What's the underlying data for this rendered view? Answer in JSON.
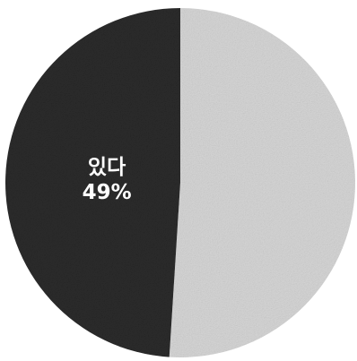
{
  "chart_data": {
    "type": "pie",
    "title": "",
    "start_angle_deg": 0,
    "direction": "clockwise",
    "slices": [
      {
        "label": "",
        "percent_label": "",
        "value": 51,
        "color": "#d6d6d6",
        "text_color": "#ffffff"
      },
      {
        "label": "있다",
        "percent_label": "49%",
        "value": 49,
        "color": "#2b2b2b",
        "text_color": "#ffffff"
      }
    ],
    "legend": "none"
  }
}
